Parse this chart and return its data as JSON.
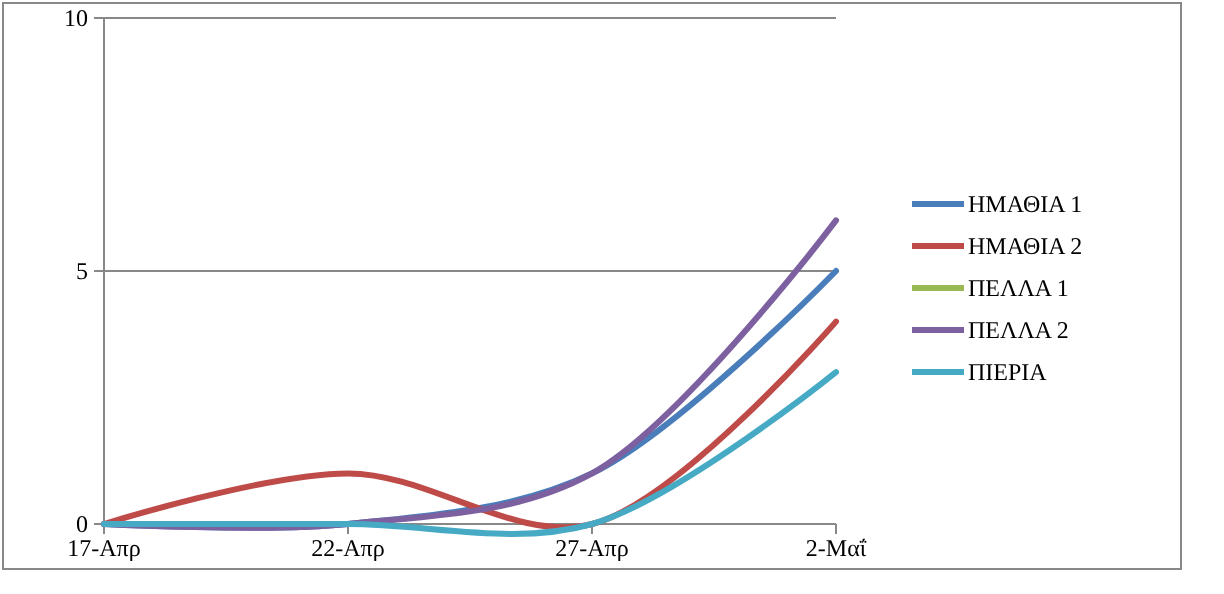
{
  "chart_data": {
    "type": "line",
    "categories": [
      "17-Απρ",
      "22-Απρ",
      "27-Απρ",
      "2-Μαΐ"
    ],
    "series": [
      {
        "name": "ΗΜΑΘΙΑ 1",
        "color": "#4a7ebb",
        "values": [
          0,
          0,
          1,
          5
        ]
      },
      {
        "name": "ΗΜΑΘΙΑ 2",
        "color": "#be4b48",
        "values": [
          0,
          1,
          0,
          4
        ]
      },
      {
        "name": "ΠΕΛΛΑ 1",
        "color": "#98b954",
        "values": [
          null,
          null,
          null,
          null
        ]
      },
      {
        "name": "ΠΕΛΛΑ 2",
        "color": "#7d60a0",
        "values": [
          0,
          0,
          1,
          6
        ]
      },
      {
        "name": "ΠΙΕΡΙΑ",
        "color": "#46aac5",
        "values": [
          0,
          0,
          0,
          3
        ]
      }
    ],
    "ylim": [
      0,
      10
    ],
    "yticks": [
      0,
      5,
      10
    ],
    "grid": "y",
    "legend": "right",
    "marker": "none",
    "line_style": "solid"
  }
}
